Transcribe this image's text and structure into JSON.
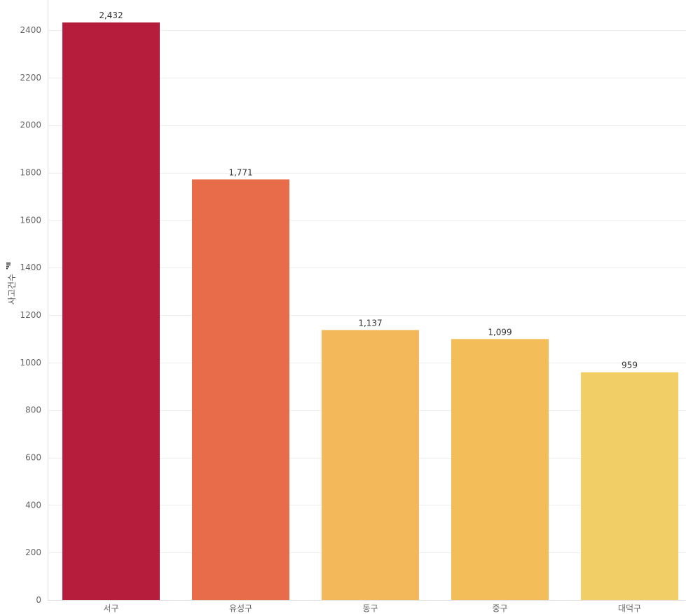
{
  "chart_data": {
    "type": "bar",
    "title": "",
    "xlabel": "",
    "ylabel": "사고건수",
    "ylim": [
      0,
      2435
    ],
    "yticks": [
      0,
      200,
      400,
      600,
      800,
      1000,
      1200,
      1400,
      1600,
      1800,
      2000,
      2200,
      2400
    ],
    "grid": true,
    "legend": "none",
    "categories": [
      "서구",
      "유성구",
      "동구",
      "중구",
      "대덕구"
    ],
    "values": [
      2432,
      1771,
      1137,
      1099,
      959
    ],
    "value_labels": [
      "2,432",
      "1,771",
      "1,137",
      "1,099",
      "959"
    ],
    "colors": [
      "#b61c3c",
      "#e96c4a",
      "#f3b85a",
      "#f3bd5a",
      "#f2cf66"
    ]
  },
  "colors": {
    "grid": "#eeeeee",
    "axis": "#e0e0e0",
    "axis_icon": "#333333"
  }
}
